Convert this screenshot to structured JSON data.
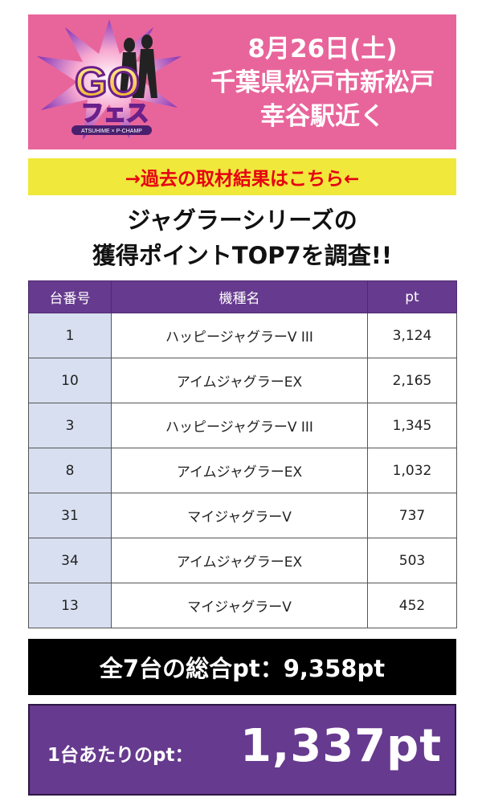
{
  "banner": {
    "logo": {
      "main": "GO",
      "sub": "フェス",
      "tagline": "ATSUHIME × P-CHAMP"
    },
    "date": "8月26日(土)",
    "place": "千葉県松戸市新松戸",
    "station": "幸谷駅近く"
  },
  "past_link": "→過去の取材結果はこちら←",
  "headline": {
    "line1": "ジャグラーシリーズの",
    "line2": "獲得ポイントTOP7を調査!!"
  },
  "table": {
    "headers": [
      "台番号",
      "機種名",
      "pt"
    ],
    "rows": [
      {
        "num": "1",
        "name": "ハッピージャグラーV III",
        "pt": "3,124"
      },
      {
        "num": "10",
        "name": "アイムジャグラーEX",
        "pt": "2,165"
      },
      {
        "num": "3",
        "name": "ハッピージャグラーV III",
        "pt": "1,345"
      },
      {
        "num": "8",
        "name": "アイムジャグラーEX",
        "pt": "1,032"
      },
      {
        "num": "31",
        "name": "マイジャグラーV",
        "pt": "737"
      },
      {
        "num": "34",
        "name": "アイムジャグラーEX",
        "pt": "503"
      },
      {
        "num": "13",
        "name": "マイジャグラーV",
        "pt": "452"
      }
    ]
  },
  "total": "全7台の総合pt：9,358pt",
  "average": {
    "label": "1台あたりのpt：",
    "value": "1,337pt"
  },
  "colors": {
    "banner_pink": "#e8659b",
    "link_yellow": "#f0e83a",
    "link_red": "#e60012",
    "header_purple": "#663a8e",
    "number_cell_blue": "#d7dff0"
  }
}
